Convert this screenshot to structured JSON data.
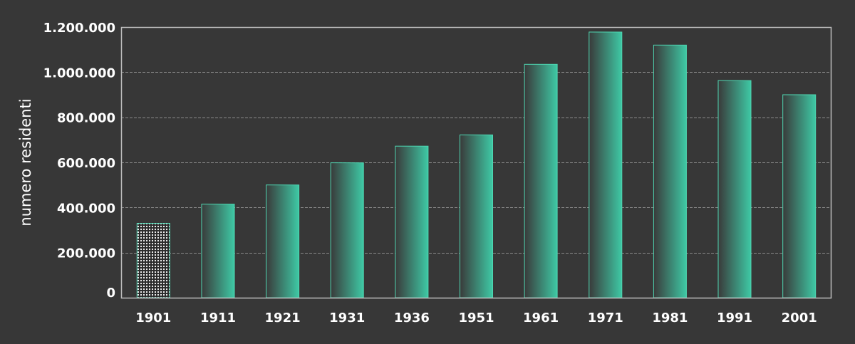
{
  "chart_data": {
    "type": "bar",
    "title": "",
    "xlabel": "",
    "ylabel": "numero residenti",
    "categories": [
      "1901",
      "1911",
      "1921",
      "1931",
      "1936",
      "1951",
      "1961",
      "1971",
      "1981",
      "1991",
      "2001"
    ],
    "values": [
      330000,
      415000,
      500000,
      598000,
      672000,
      722000,
      1035000,
      1178000,
      1120000,
      963000,
      900000
    ],
    "ylim": [
      0,
      1200000
    ],
    "yticks": [
      0,
      200000,
      400000,
      600000,
      800000,
      1000000,
      1200000
    ],
    "ytick_labels": [
      "0",
      "200.000",
      "400.000",
      "600.000",
      "800.000",
      "1.000.000",
      "1.200.000"
    ],
    "grid": true,
    "legend": "none",
    "colors": {
      "background": "#373737",
      "bar_dark": "#3a3a3a",
      "bar_light": "#3ec9a5",
      "bar_edge": "#4fd8b3",
      "grid": "#8a8a8a",
      "frame": "#bdbdbd",
      "text": "#ffffff"
    },
    "highlighted_category": "1901"
  }
}
